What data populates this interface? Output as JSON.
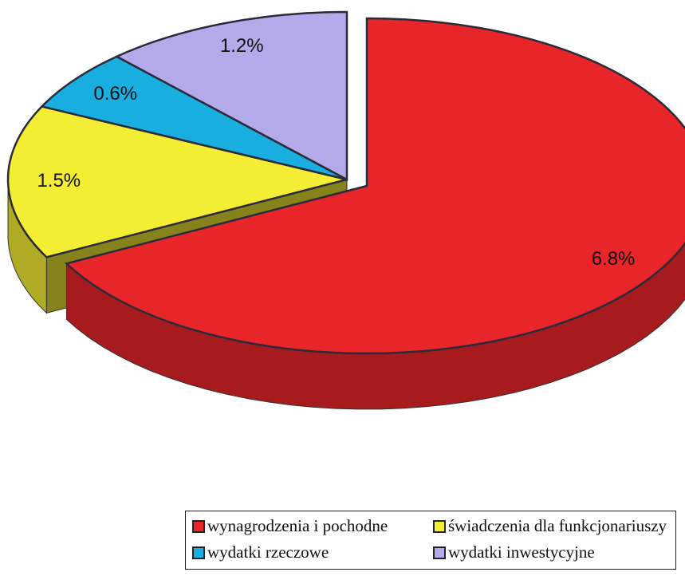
{
  "chart_data": {
    "type": "pie",
    "categories": [
      "wynagrodzenia i pochodne",
      "świadczenia dla funkcjonariuszy",
      "wydatki rzeczowe",
      "wydatki inwestycyjne"
    ],
    "values": [
      6.8,
      1.5,
      0.6,
      1.2
    ],
    "value_labels": [
      "6.8%",
      "1.5%",
      "0.6%",
      "1.2%"
    ],
    "colors": [
      "#e8262a",
      "#f3ee34",
      "#19aee0",
      "#b4aaea"
    ],
    "legend": "bottom"
  }
}
